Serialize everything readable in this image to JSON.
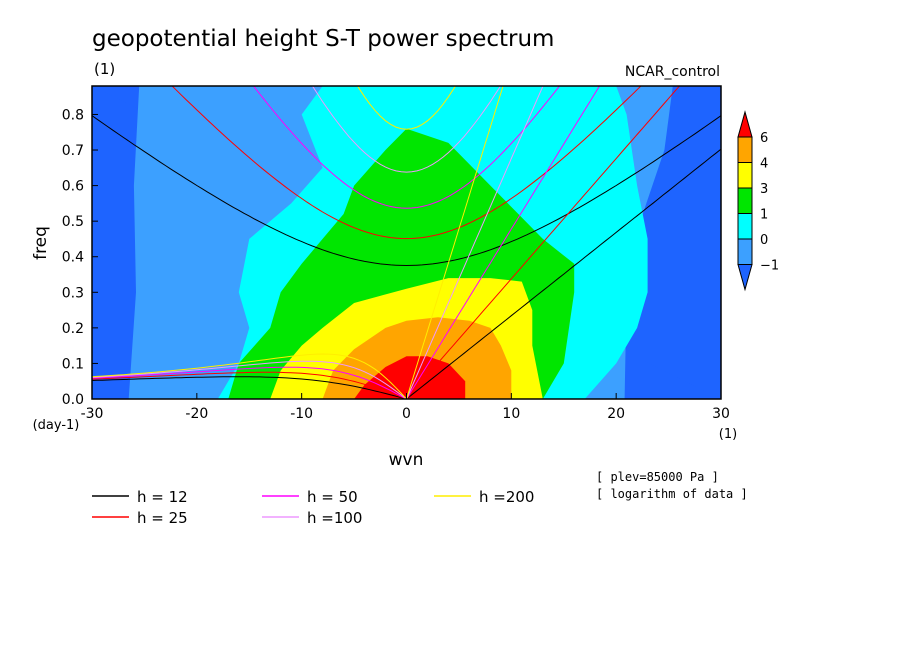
{
  "chart_data": {
    "type": "heatmap",
    "title": "geopotential height S-T power spectrum",
    "subtitle_left": "(1)",
    "subtitle_right": "NCAR_control",
    "xlabel": "wvn",
    "ylabel": "freq",
    "x_units": "(1)",
    "y_units": "(day-1)",
    "xlim": [
      -30,
      30
    ],
    "ylim": [
      0,
      0.88
    ],
    "x_ticks": [
      -30,
      -20,
      -10,
      0,
      10,
      20,
      30
    ],
    "x_tick_labels": [
      "-30",
      "-20",
      "-10",
      "0",
      "10",
      "20",
      "30"
    ],
    "y_ticks": [
      0,
      0.1,
      0.2,
      0.3,
      0.4,
      0.5,
      0.6,
      0.7,
      0.8
    ],
    "y_tick_labels": [
      "0.0",
      "0.1",
      "0.2",
      "0.3",
      "0.4",
      "0.5",
      "0.6",
      "0.7",
      "0.8"
    ],
    "colorbar": {
      "levels": [
        -1,
        0,
        1,
        3,
        4,
        6
      ],
      "level_labels": [
        "-1",
        "0",
        "1",
        "3",
        "4",
        "6"
      ],
      "colors": [
        "#1e64ff",
        "#3ca0ff",
        "#00ffff",
        "#00e600",
        "#ffff00",
        "#ffa500",
        "#ff0000"
      ]
    },
    "field_regions": [
      {
        "level": 0,
        "x": [
          -30,
          -25.5,
          -26,
          -25,
          -15,
          -12,
          -9,
          -6,
          -4,
          -2,
          1,
          3,
          2,
          0,
          2,
          6,
          16,
          20,
          22,
          24,
          26,
          27,
          28,
          28,
          30
        ],
        "y": [
          0.88,
          0.88,
          0.8,
          0.5,
          0.38,
          0.3,
          0.1,
          0.05,
          0.02,
          0.01,
          0.01,
          0.01,
          0.02,
          0.05,
          0.1,
          0.3,
          0.4,
          0.5,
          0.7,
          0.8,
          0.86,
          0.88,
          0.88,
          0,
          0
        ]
      },
      {
        "x": [
          -30,
          -12,
          -3.5,
          25.4
        ],
        "y": [
          0,
          0,
          0.88,
          0.88
        ],
        "level": 1
      },
      {
        "level": 2,
        "x": [
          -22,
          -18,
          -16,
          -15,
          -16,
          -15,
          -11,
          -8,
          -10,
          -8,
          1,
          10,
          20,
          21,
          22,
          23,
          23,
          22,
          20,
          17
        ],
        "y": [
          0,
          0,
          0.1,
          0.2,
          0.3,
          0.45,
          0.55,
          0.65,
          0.8,
          0.88,
          0.88,
          0.88,
          0.88,
          0.8,
          0.6,
          0.45,
          0.3,
          0.2,
          0.1,
          0
        ]
      },
      {
        "level": 3,
        "x": [
          -17,
          -16,
          -13,
          -12,
          -10,
          -8,
          -6,
          -5,
          -2,
          0,
          4,
          8,
          13,
          16,
          16,
          15,
          13
        ],
        "y": [
          0,
          0.1,
          0.2,
          0.3,
          0.38,
          0.45,
          0.52,
          0.6,
          0.7,
          0.76,
          0.72,
          0.6,
          0.45,
          0.38,
          0.3,
          0.1,
          0
        ]
      },
      {
        "level": 4,
        "x": [
          -13,
          -12,
          -10,
          -8,
          -5,
          0,
          4,
          8,
          11,
          12,
          12,
          13
        ],
        "y": [
          0,
          0.08,
          0.15,
          0.2,
          0.27,
          0.31,
          0.34,
          0.34,
          0.33,
          0.25,
          0.15,
          0
        ]
      },
      {
        "level": 5,
        "x": [
          -8,
          -7,
          -5,
          -2,
          0,
          3,
          6,
          8,
          9,
          10,
          10
        ],
        "y": [
          0,
          0.08,
          0.14,
          0.2,
          0.22,
          0.23,
          0.22,
          0.2,
          0.15,
          0.08,
          0
        ]
      },
      {
        "level": 6,
        "x": [
          -5,
          -4,
          -2,
          0,
          2,
          4,
          5.6,
          5.6
        ],
        "y": [
          0,
          0.04,
          0.09,
          0.12,
          0.12,
          0.1,
          0.05,
          0
        ]
      }
    ],
    "dispersion_curves": [
      {
        "label": "h = 12",
        "color": "#000000",
        "h": 12
      },
      {
        "label": "h = 25",
        "color": "#ff0000",
        "h": 25
      },
      {
        "label": "h = 50",
        "color": "#ff00ff",
        "h": 50
      },
      {
        "label": "h =100",
        "color": "#ee99ff",
        "h": 100
      },
      {
        "label": "h =200",
        "color": "#ffee00",
        "h": 200
      }
    ],
    "notes": [
      "[ plev=85000 Pa ]",
      "[ logarithm of data ]"
    ]
  }
}
